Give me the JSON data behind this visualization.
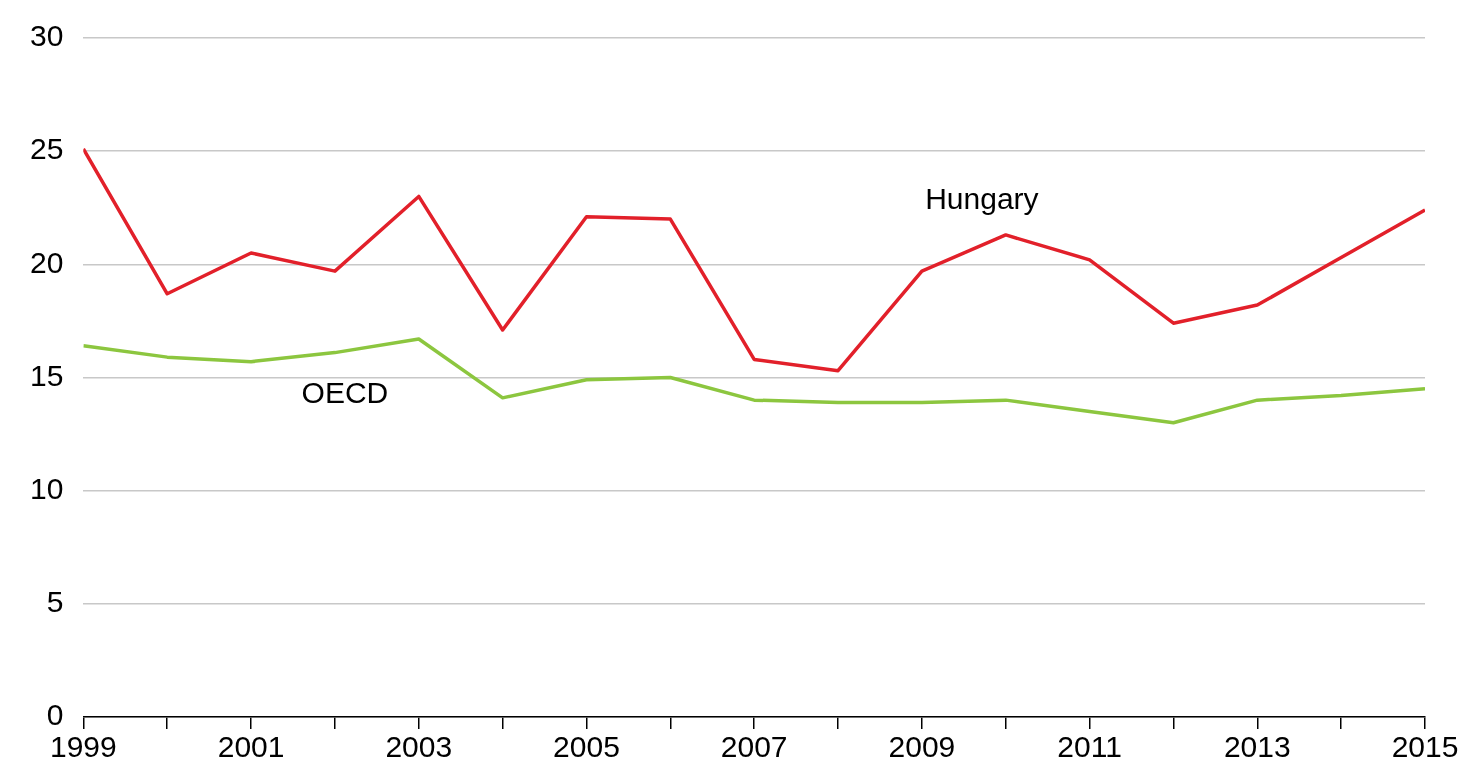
{
  "chart_data": {
    "type": "line",
    "x": [
      1999,
      2000,
      2001,
      2002,
      2003,
      2004,
      2005,
      2006,
      2007,
      2008,
      2009,
      2010,
      2011,
      2012,
      2013,
      2014,
      2015
    ],
    "series": [
      {
        "name": "Hungary",
        "color": "#e2202a",
        "values": [
          25.1,
          18.7,
          20.5,
          19.7,
          23.0,
          17.1,
          22.1,
          22.0,
          15.8,
          15.3,
          19.7,
          21.3,
          20.2,
          17.4,
          18.2,
          20.3,
          22.4
        ]
      },
      {
        "name": "OECD",
        "color": "#8cc63f",
        "values": [
          16.4,
          15.9,
          15.7,
          16.1,
          16.7,
          14.1,
          14.9,
          15.0,
          14.0,
          13.9,
          13.9,
          14.0,
          13.5,
          13.0,
          14.0,
          14.2,
          14.5
        ]
      }
    ],
    "xlim": [
      1999,
      2015
    ],
    "xticks": [
      1999,
      {
        "value": 2000,
        "label": null
      },
      2001,
      {
        "value": 2002,
        "label": null
      },
      2003,
      {
        "value": 2004,
        "label": null
      },
      2005,
      {
        "value": 2006,
        "label": null
      },
      2007,
      {
        "value": 2008,
        "label": null
      },
      2009,
      {
        "value": 2010,
        "label": null
      },
      2011,
      {
        "value": 2012,
        "label": null
      },
      2013,
      {
        "value": 2014,
        "label": null
      },
      2015
    ],
    "ylim": [
      0,
      30
    ],
    "yticks": [
      0,
      5,
      10,
      15,
      20,
      25,
      30
    ],
    "grid": "y",
    "legend": false,
    "marker": "none",
    "line_style": "solid"
  }
}
